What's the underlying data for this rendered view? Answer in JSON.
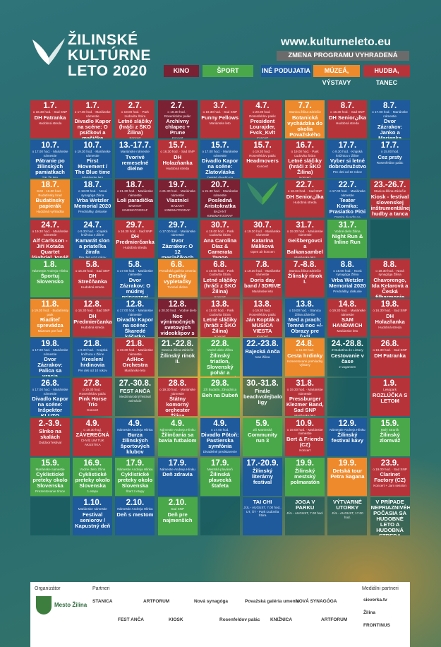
{
  "header": {
    "title_lines": [
      "ŽILINSKÉ",
      "KULTÚRNE",
      "LETO 2020"
    ],
    "site": "www.kulturneleto.eu",
    "notice": "ZMENA PROGRAMU VYHRADENÁ",
    "legend": [
      {
        "label": "KINO",
        "color": "#7a2133"
      },
      {
        "label": "ŠPORT",
        "color": "#4aa84a"
      },
      {
        "label": "INÉ PODUJATIA",
        "color": "#1e5a9c"
      },
      {
        "label": "MÚZEÁ, VÝSTAVY",
        "color": "#ee8a2c"
      },
      {
        "label": "HUDBA, TANEC",
        "color": "#b7333a"
      }
    ]
  },
  "events": [
    {
      "r": 0,
      "c": 0,
      "col": "r",
      "d": "1.7.",
      "t": "o 16.30 hod. · Sad SNP",
      "n": "DH Fatranka",
      "s": "Hudobná streda"
    },
    {
      "r": 0,
      "c": 1,
      "col": "r",
      "d": "1.7.",
      "t": "o 17.00 hod. · Mariánske námestie",
      "n": "Divadlo Kapor na scéne: O psíčkovi a mačičke",
      "s": "Detské divadlo na Studničkách"
    },
    {
      "r": 0,
      "c": 2,
      "col": "r",
      "d": "2.7.",
      "t": "o 19.00 hod. · Park Ľudovíta Štúra",
      "n": "Letné sláčiky (hráči z ŠKO Žilina)",
      "s": "Koncert"
    },
    {
      "r": 0,
      "c": 3,
      "col": "n",
      "d": "2.7.",
      "t": "o 19.30 hod. · Rosenfeldov palác",
      "n": "Archívny chlapec + Prune",
      "s": "Koncert"
    },
    {
      "r": 0,
      "c": 4,
      "col": "r",
      "d": "3.7.",
      "t": "o 19.30 hod. · Sad SNP",
      "n": "Funny Fellows",
      "s": "Mariánske leto"
    },
    {
      "r": 0,
      "c": 5,
      "col": "r",
      "d": "4.7.",
      "t": "o 20.00 hod. · Rosenfeldov palác",
      "n": "President Lourajder, Fvck_Kvlt",
      "s": "Koncert"
    },
    {
      "r": 0,
      "c": 6,
      "col": "o",
      "d": "7.7.",
      "t": "Stanica Žilina-Záriečie",
      "n": "Botanická vychádzka do okolia Považského Chlmca",
      "s": "Objavuj svet"
    },
    {
      "r": 0,
      "c": 7,
      "col": "r",
      "d": "8.7.",
      "t": "o 16.30 hod. · Sad SNP",
      "n": "DH Seniorانka",
      "s": "Hudobná streda"
    },
    {
      "r": 0,
      "c": 8,
      "col": "b",
      "d": "8.7.",
      "t": "o 17.00 hod. · Mariánske námestie",
      "n": "Dvor Zázrakov: Janko a Marienka",
      "s": "Detské divadlo na Studničkách"
    },
    {
      "r": 1,
      "c": 0,
      "col": "b",
      "d": "10.7.",
      "t": "o 17.00 hod. · Mariánske námestie",
      "n": "Pátranie po žilinských pamiatkach",
      "s": "TIK ŽILINA"
    },
    {
      "r": 1,
      "c": 1,
      "col": "b",
      "d": "10.7.",
      "t": "o 19.30 hod. · Mariánske námestie",
      "n": "First Movement / The Blue time",
      "s": "Mariánske leto"
    },
    {
      "r": 1,
      "c": 2,
      "col": "b",
      "d": "13.-17.7.",
      "t": "Mariánske námestie",
      "n": "Tvorivé remeselné dielne",
      "s": ""
    },
    {
      "r": 1,
      "c": 3,
      "col": "r",
      "d": "15.7.",
      "t": "o 16.30 hod. · Sad SNP",
      "n": "DH Holazňanka",
      "s": "Hudobná streda"
    },
    {
      "r": 1,
      "c": 4,
      "col": "b",
      "d": "15.7.",
      "t": "o 17.00 hod. · Mariánske námestie",
      "n": "Divadlo Kapor na scéne: Zlatovláska",
      "s": "Detské divadlo na Studničkách"
    },
    {
      "r": 1,
      "c": 5,
      "col": "r",
      "d": "15.7.",
      "t": "o 19.30 hod. · Rosenfeldov palác",
      "n": "Headmovers",
      "s": "Koncert"
    },
    {
      "r": 1,
      "c": 6,
      "col": "r",
      "d": "16.7.",
      "t": "o 19.00 hod. · Park Ľudovíta Štúra",
      "n": "Letné sláčiky (hráči z ŠKO Žilina)",
      "s": "Koncert"
    },
    {
      "r": 1,
      "c": 7,
      "col": "b",
      "d": "17.7.",
      "t": "o 9.30 hod. · Krajská knižnica v Žiline",
      "n": "Vyber si letné dobrodružstvo",
      "s": "Pre deti od 10 rokov"
    },
    {
      "r": 1,
      "c": 8,
      "col": "b",
      "d": "17.7.",
      "t": "o 15.00 hod.",
      "n": "Cez prsty",
      "s": "Rosenfeldov palác"
    },
    {
      "r": 2,
      "c": 0,
      "col": "o",
      "d": "18.7.",
      "t": "9.00 - 16.00 hod. · Budatínsky hrad",
      "n": "Budatínsky papierák",
      "s": "Hudobná vyhliadka"
    },
    {
      "r": 2,
      "c": 1,
      "col": "b",
      "d": "18.7.",
      "t": "o 18.00 hod. · Nová synagóga Žilina",
      "n": "Vrba Wetzler Memorial 2020",
      "s": "Prednášky, diskusie"
    },
    {
      "r": 2,
      "c": 2,
      "col": "n",
      "d": "18.7.",
      "t": "o 21.30 hod. · Mariánske námestie",
      "n": "Loli paradička",
      "s": "BAZANT KINEMATOGRAF"
    },
    {
      "r": 2,
      "c": 3,
      "col": "n",
      "d": "19.7.",
      "t": "o 21.30 hod. · Mariánske námestie",
      "n": "Vlastníci",
      "s": "BAZANT KINEMATOGRAF"
    },
    {
      "r": 2,
      "c": 4,
      "col": "n",
      "d": "20.7.",
      "t": "o 21.30 hod. · Mariánske námestie",
      "n": "Posledná Aristokratka",
      "s": "BAZANT KINEMATOGRAF"
    },
    {
      "r": 2,
      "c": 5,
      "col": "bf"
    },
    {
      "r": 2,
      "c": 6,
      "col": "r",
      "d": "22.7.",
      "t": "o 16.30 hod. · Sad SNP",
      "n": "DH Seniorانka",
      "s": "Hudobná streda"
    },
    {
      "r": 2,
      "c": 7,
      "col": "b",
      "d": "22.7.",
      "t": "o 17.00 hod. · Mariánske námestie",
      "n": "Teater Komika: Prasiatko PiGi",
      "s": "Detské divadlo na Studničkách"
    },
    {
      "r": 2,
      "c": 8,
      "col": "r",
      "d": "23.-26.7.",
      "t": "Stanica Žilina-Záriečie",
      "n": "Kiosk - festival slovenskej inštrumentálnej hudby a tanca",
      "s": ""
    },
    {
      "r": 3,
      "c": 0,
      "col": "r",
      "d": "24.7.",
      "t": "o 19.30 hod. · Mariánske námestie",
      "n": "Alf Carlsson - Jiří Kotača Quartet (Gabriel Jonáš trio)",
      "s": "Mariánske leto"
    },
    {
      "r": 3,
      "c": 1,
      "col": "b",
      "d": "24.7.",
      "t": "o 9.30 hod. · Krajská knižnica v Žiline",
      "n": "Kamarát slon a priateľka žirafa",
      "s": "Pre deti od 6 rokov"
    },
    {
      "r": 3,
      "c": 2,
      "col": "r",
      "d": "29.7.",
      "t": "o 16.30 hod. · Sad SNP",
      "n": "DH Predmierčanka",
      "s": "Hudobná streda"
    },
    {
      "r": 3,
      "c": 3,
      "col": "b",
      "d": "29.7.",
      "t": "o 17.00 hod. · Mariánske námestie",
      "n": "Dvor Zázrakov: O 12 mesiačikoch",
      "s": "Detské divadlo na Studničkách"
    },
    {
      "r": 3,
      "c": 4,
      "col": "r",
      "d": "30.7.",
      "t": "o 19.00 hod. · Park Ľudovíta Štúra",
      "n": "Ana Carolina Díaz & Camerata Tango",
      "s": "Koncert"
    },
    {
      "r": 3,
      "c": 5,
      "col": "r",
      "d": "30.7.",
      "t": "o 19.30 hod. · Mariánske námestie",
      "n": "Katarína Máliková",
      "s": "Open air koncert"
    },
    {
      "r": 3,
      "c": 6,
      "col": "r",
      "d": "31.7.",
      "t": "o 19.30 hod. · Mariánske námestie",
      "n": "Geišbergovci a Balkansambel",
      "s": "Mariánske leto"
    },
    {
      "r": 3,
      "c": 7,
      "col": "g",
      "d": "31.7.",
      "t": "Vodné dielo Žilina",
      "n": "Night Run & Inline Run",
      "s": ""
    },
    {
      "r": 3,
      "c": 8,
      "col": "tt"
    },
    {
      "r": 4,
      "c": 0,
      "col": "g",
      "d": "1.8.",
      "t": "Námestie Andreja Hlinku",
      "n": "Športuj Slovensko",
      "s": ""
    },
    {
      "r": 4,
      "c": 1,
      "col": "r",
      "d": "5.8.",
      "t": "o 16.30 hod. · Sad SNP",
      "n": "DH Strečňanka",
      "s": "Hudobná streda"
    },
    {
      "r": 4,
      "c": 2,
      "col": "b",
      "d": "5.8.",
      "t": "o 17.00 hod. · Mariánske námestie",
      "n": "Dvor Zázrakov: O múdrej princeznej",
      "s": "Detské divadlo na Studničkách"
    },
    {
      "r": 4,
      "c": 3,
      "col": "o",
      "d": "6.8.",
      "t": "Považská galéria umenia",
      "n": "Detský vypletačky",
      "s": "Tvorivé dielne"
    },
    {
      "r": 4,
      "c": 4,
      "col": "r",
      "d": "6.8.",
      "t": "o 19.00 hod. · Park Ľudovíta Štúra",
      "n": "Letné sláčiky (hráči z ŠKO Žilina)",
      "s": "Koncert"
    },
    {
      "r": 4,
      "c": 5,
      "col": "r",
      "d": "7.8.",
      "t": "o 19.30 hod. · Mariánske námestie",
      "n": "Doris day band / 3DRIVE",
      "s": "Mariánske leto"
    },
    {
      "r": 4,
      "c": 6,
      "col": "r",
      "d": "7.-8.8.",
      "t": "Stanica Žilina-Záriečie",
      "n": "Žilinský rínok I.",
      "s": ""
    },
    {
      "r": 4,
      "c": 7,
      "col": "b",
      "d": "8.8.",
      "t": "o 18.00 hod. · Nová synagóga Žilina",
      "n": "Vrba Wetzler Memorial 2020",
      "s": "Prednášky, diskusie"
    },
    {
      "r": 4,
      "c": 8,
      "col": "r",
      "d": "8.8.",
      "t": "o 19.30 hod. · Nová synagóga Žilina",
      "n": "Chavorengo, Ida Kelarová a Česká filharmonie",
      "s": "Koncert"
    },
    {
      "r": 5,
      "c": 0,
      "col": "o",
      "d": "11.8.",
      "t": "o 19.30 hod. · Budatínsky park",
      "n": "Riaditeľ sprevádza",
      "s": "Múzeum pre ľudí"
    },
    {
      "r": 5,
      "c": 1,
      "col": "r",
      "d": "12.8.",
      "t": "o 16.30 hod. · Sad SNP",
      "n": "DH Predmierčanka",
      "s": "Hudobná streda"
    },
    {
      "r": 5,
      "c": 2,
      "col": "b",
      "d": "12.8.",
      "t": "o 17.00 hod. · Mariánske námestie",
      "n": "Divadlo Kapor na scéne: Škaredé káčatko",
      "s": "Detské divadlo na Studničkách"
    },
    {
      "r": 5,
      "c": 3,
      "col": "n",
      "d": "12.8.",
      "t": "o 20.30 hod. · Vodné dielo",
      "n": "Noc výnimočných svetových videoklipov s Petrom Konečným",
      "s": ""
    },
    {
      "r": 5,
      "c": 4,
      "col": "r",
      "d": "13.8.",
      "t": "o 19.00 hod. · Park Ľudovíta Štúra",
      "n": "Letné sláčiky (hráči z ŠKO Žilina)",
      "s": "Koncert"
    },
    {
      "r": 5,
      "c": 5,
      "col": "r",
      "d": "13.8.",
      "t": "o 19.30 hod. · Rosenfeldov palác",
      "n": "Ján Kopták a MUSICA VIESTA",
      "s": "Koncert"
    },
    {
      "r": 5,
      "c": 6,
      "col": "b",
      "d": "13.8.",
      "t": "o 19.00 hod. · Stanica Žilina-Záriečie",
      "n": "Med a prach: Temná noc +/- Obrazy pre ľudí",
      "s": "Výtvarne performancie"
    },
    {
      "r": 5,
      "c": 7,
      "col": "r",
      "d": "14.8.",
      "t": "o 19.30 hod. · Mariánske námestie",
      "n": "SAM HANDWICH",
      "s": "Mariánske leto"
    },
    {
      "r": 5,
      "c": 8,
      "col": "r",
      "d": "19.8.",
      "t": "o 16.30 hod. · Sad SNP",
      "n": "DH Holazňanka",
      "s": "Hudobná streda"
    },
    {
      "r": 6,
      "c": 0,
      "col": "b",
      "d": "19.8.",
      "t": "o 17.00 hod. · Mariánske námestie",
      "n": "Dvor Zázrakov: Palica sa vracia",
      "s": "Detské divadlo na Studničkách"
    },
    {
      "r": 6,
      "c": 1,
      "col": "b",
      "d": "21.8.",
      "t": "o 9.30 hod. · Krajská knižnica v Žiline",
      "n": "Kreslení hrdinovia",
      "s": "Pre deti od 10 rokov"
    },
    {
      "r": 6,
      "c": 2,
      "col": "r",
      "d": "21.8.",
      "t": "o 19.30 hod. · Mariánske námestie",
      "n": "AdHoc Orchestra",
      "s": "Mariánske leto"
    },
    {
      "r": 6,
      "c": 3,
      "col": "tt",
      "d": "21.-22.8.",
      "t": "Stanica Žilina-Záriečie",
      "n": "Žilinský rínok II.",
      "s": ""
    },
    {
      "r": 6,
      "c": 4,
      "col": "g",
      "d": "22.8.",
      "t": "Vodné dielo Žilina",
      "n": "Žilinský triatlon, Slovenský pohár a Majstrovstvá Slovenska",
      "s": ""
    },
    {
      "r": 6,
      "c": 5,
      "col": "b",
      "d": "22.-23.8.",
      "t": "",
      "n": "Rajecká Anča",
      "s": "Ivan Žilina"
    },
    {
      "r": 6,
      "c": 6,
      "col": "o",
      "d": "24.8.",
      "t": "o 15.00 hod.",
      "n": "Cesta hrdinky",
      "s": "Komentované prehliadky výstavy"
    },
    {
      "r": 6,
      "c": 7,
      "col": "tt",
      "d": "24.-28.8.",
      "t": "Z Budatína do Lietavy",
      "n": "Cestovanie v čase",
      "s": "z vagantom"
    },
    {
      "r": 6,
      "c": 8,
      "col": "r",
      "d": "26.8.",
      "t": "o 16.30 hod. · Sad SNP",
      "n": "DH Fatranka",
      "s": ""
    },
    {
      "r": 7,
      "c": 0,
      "col": "b",
      "d": "26.8.",
      "t": "o 17.00 hod. · Mariánske námestie",
      "n": "Divadlo Kapor na scéne: Inšpektor KLUZO",
      "s": "Detské divadlo na Studničkách"
    },
    {
      "r": 7,
      "c": 1,
      "col": "r",
      "d": "27.8.",
      "t": "o 19.30 hod. · Rosenfeldov palác",
      "n": "Pink Horse Trio",
      "s": "Koncert"
    },
    {
      "r": 7,
      "c": 2,
      "col": "tt",
      "d": "27.-30.8.",
      "t": "",
      "n": "FEST ANČA",
      "s": "Medzinárodný festival animácie"
    },
    {
      "r": 7,
      "c": 3,
      "col": "r",
      "d": "28.8.",
      "t": "o 19.30 hod. · Mariánske námestie",
      "n": "Štátny komorný orchester Žilina",
      "s": "Mariánske leto"
    },
    {
      "r": 7,
      "c": 4,
      "col": "g",
      "d": "29.8.",
      "t": "ZŠ Budatín, Závodnica",
      "n": "Beh na Dubeň",
      "s": ""
    },
    {
      "r": 7,
      "c": 5,
      "col": "tt",
      "d": "30.-31.8.",
      "t": "",
      "n": "Finále beachvolejbalovej ligy",
      "s": ""
    },
    {
      "r": 7,
      "c": 6,
      "col": "r",
      "d": "31.8.",
      "t": "o 19.30 hod. · Mariánske námestie",
      "n": "Pressburger Klezmer Band, Sad SNP",
      "s": "Mariánske leto"
    },
    {
      "r": 7,
      "c": 7,
      "col": "tt"
    },
    {
      "r": 7,
      "c": 8,
      "col": "r",
      "d": "1.9.",
      "t": "Lesopark",
      "n": "ROZLÚČKA S LETOM",
      "s": ""
    },
    {
      "r": 8,
      "c": 0,
      "col": "r",
      "d": "2.-3.9.",
      "t": "",
      "n": "Slnko na skalách",
      "s": "Outdoor festival"
    },
    {
      "r": 8,
      "c": 1,
      "col": "r",
      "d": "4.9.",
      "t": "o 19.30 hod.",
      "n": "ZÁVEREČNÁ",
      "s": "CHVÍĽ LIM TUK AKUSTIKA"
    },
    {
      "r": 8,
      "c": 2,
      "col": "b",
      "d": "4.9.",
      "t": "Námestie Andreja Hlinku",
      "n": "Burza žilinských športových klubov",
      "s": ""
    },
    {
      "r": 8,
      "c": 3,
      "col": "g",
      "d": "4.9.",
      "t": "Námestie Andreja Hlinku",
      "n": "Žilinčania sa bavia futbalom",
      "s": ""
    },
    {
      "r": 8,
      "c": 4,
      "col": "b",
      "d": "4.9.",
      "t": "o 17.00 hod.",
      "n": "Divadlo Pôtoň: Pastierska symfónia",
      "s": "Divadelné predstavenie"
    },
    {
      "r": 8,
      "c": 5,
      "col": "g",
      "d": "5.9.",
      "t": "ZŠ Martinská",
      "n": "Community run 3",
      "s": ""
    },
    {
      "r": 8,
      "c": 6,
      "col": "r",
      "d": "10.9.",
      "t": "o 19.00 hod. · Mariánske námestie",
      "n": "Bert & Friends (CZ)",
      "s": "Koncert"
    },
    {
      "r": 8,
      "c": 7,
      "col": "b",
      "d": "12.9.",
      "t": "Námestie Andreja Hlinku",
      "n": "Žilinský festival kávy",
      "s": ""
    },
    {
      "r": 8,
      "c": 8,
      "col": "g",
      "d": "15.9.",
      "t": "Malý Straník",
      "n": "Žilinský zlomváž",
      "s": ""
    },
    {
      "r": 9,
      "c": 0,
      "col": "g",
      "d": "15.9.",
      "t": "Mariánske námestie",
      "n": "Cyklistické preteky okolo Slovenska",
      "s": "Prezentovanie tímov"
    },
    {
      "r": 9,
      "c": 1,
      "col": "g",
      "d": "16.9.",
      "t": "Vodné dielo Žilina",
      "n": "Cyklistické preteky okolo Slovenska",
      "s": "1.etapa"
    },
    {
      "r": 9,
      "c": 2,
      "col": "g",
      "d": "17.9.",
      "t": "Námestie Andreja Hlinku",
      "n": "Cyklistické preteky okolo Slovenska",
      "s": "Štart 2.etapy"
    },
    {
      "r": 9,
      "c": 3,
      "col": "b",
      "d": "17.9.",
      "t": "Námestie Andreja Hlinku",
      "n": "Deň zdravia",
      "s": ""
    },
    {
      "r": 9,
      "c": 4,
      "col": "g",
      "d": "17.9.",
      "t": "Mestská plaváreň",
      "n": "Žilinská plavecká štafeta",
      "s": ""
    },
    {
      "r": 9,
      "c": 5,
      "col": "b",
      "d": "17.-20.9.",
      "t": "",
      "n": "Žilinský literárny festival",
      "s": ""
    },
    {
      "r": 9,
      "c": 6,
      "col": "g",
      "d": "19.9.",
      "t": "",
      "n": "Žilinský mestský polmaratón",
      "s": ""
    },
    {
      "r": 9,
      "c": 7,
      "col": "o",
      "d": "19.9.",
      "t": "",
      "n": "Detská tour Petra Sagana",
      "s": ""
    },
    {
      "r": 9,
      "c": 8,
      "col": "r",
      "d": "23.9.",
      "t": "o 19.00 hod. · Sad SNP",
      "n": "Clarinet Factory (CZ)",
      "s": "Koncert + Jam session"
    },
    {
      "r": 10,
      "c": 0,
      "col": "tt"
    },
    {
      "r": 10,
      "c": 1,
      "col": "b",
      "d": "1.10.",
      "t": "Mariánske námestie",
      "n": "Festival seniorov / Kapustný deň",
      "s": ""
    },
    {
      "r": 10,
      "c": 2,
      "col": "b",
      "d": "2.10.",
      "t": "Námestie Andreja Hlinku",
      "n": "Deň s mestom",
      "s": ""
    },
    {
      "r": 10,
      "c": 3,
      "col": "g",
      "d": "2.10.",
      "t": "Sad SNP",
      "n": "Deň pre najmenších",
      "s": ""
    },
    {
      "r": 10,
      "c": 4,
      "col": "tt"
    },
    {
      "r": 10,
      "c": 5,
      "col": "b",
      "d": "",
      "t": "",
      "n": "TAI CHI",
      "s": "JÚL - AUGUST, 7.00 hod., UT, ŠT - Park Ľudovíta Štúra"
    },
    {
      "r": 10,
      "c": 6,
      "col": "tt",
      "d": "",
      "t": "",
      "n": "JOGA V PARKU",
      "s": "JÚL - AUGUST, 7.00 hod."
    },
    {
      "r": 10,
      "c": 7,
      "col": "tt",
      "d": "",
      "t": "",
      "n": "VÝTVARNÉ UTORKY",
      "s": "JÚL - AUGUST, 17.00 hod."
    },
    {
      "r": 10,
      "c": 8,
      "col": "tt",
      "d": "",
      "t": "",
      "n": "V PRÍPADE NEPRIAZNIVÉHO POČASIA SA HUDOBNÉ LETO A HUDOBNÁ STREDA KONAŤ NEBUDÚ.",
      "s": ""
    }
  ],
  "footer": {
    "organizer_label": "Organizátor",
    "organizer": "Mesto Žilina",
    "partners_label": "Partneri",
    "media_label": "Mediálni partneri",
    "partners": [
      "STANICA",
      "FEST ANČA",
      "ARTFORUM",
      "KIOSK",
      "Nová synagóga",
      "Rosenfeldov palác",
      "Považská galéria umenia",
      "KNIŽNICA",
      "NOVÁ SYNAGÓGA",
      "ARTFORUM"
    ],
    "media": [
      "sieverka.tv",
      "Žilina",
      "FRONTINUS"
    ]
  },
  "colors": {
    "bg": "#2b6f73",
    "red": "#b7333a",
    "blue": "#1e5a9c",
    "green": "#4aa84a",
    "orange": "#ee8a2c",
    "cinema": "#7a2133"
  }
}
